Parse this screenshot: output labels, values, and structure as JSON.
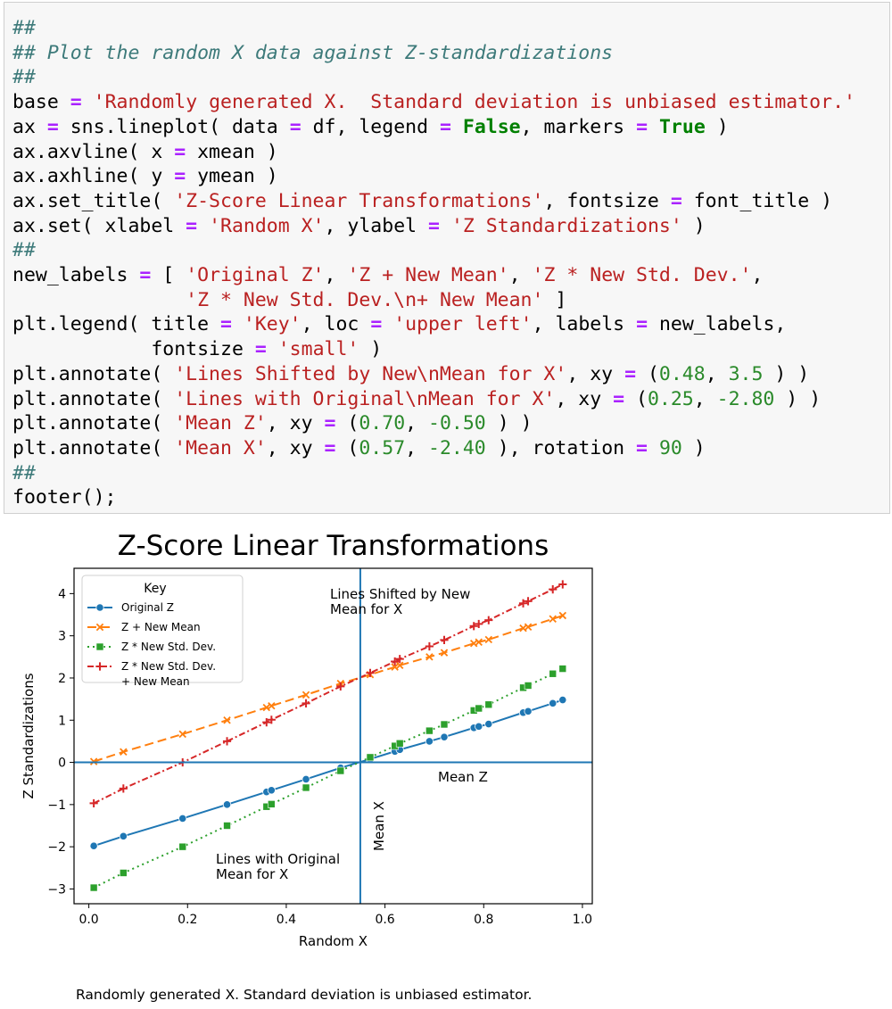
{
  "code_lines": [
    [
      {
        "t": "##",
        "c": "cm"
      }
    ],
    [
      {
        "t": "## Plot the random X data against Z-standardizations",
        "c": "cm"
      }
    ],
    [
      {
        "t": "##",
        "c": "cm"
      }
    ],
    [
      {
        "t": "base "
      },
      {
        "t": "=",
        "c": "op"
      },
      {
        "t": " "
      },
      {
        "t": "'Randomly generated X.  Standard deviation is unbiased estimator.'",
        "c": "st"
      }
    ],
    [
      {
        "t": "ax "
      },
      {
        "t": "=",
        "c": "op"
      },
      {
        "t": " sns.lineplot( data "
      },
      {
        "t": "=",
        "c": "op"
      },
      {
        "t": " df, legend "
      },
      {
        "t": "=",
        "c": "op"
      },
      {
        "t": " "
      },
      {
        "t": "False",
        "c": "kw"
      },
      {
        "t": ", markers "
      },
      {
        "t": "=",
        "c": "op"
      },
      {
        "t": " "
      },
      {
        "t": "True",
        "c": "kw"
      },
      {
        "t": " )"
      }
    ],
    [
      {
        "t": "ax.axvline( x "
      },
      {
        "t": "=",
        "c": "op"
      },
      {
        "t": " xmean )"
      }
    ],
    [
      {
        "t": "ax.axhline( y "
      },
      {
        "t": "=",
        "c": "op"
      },
      {
        "t": " ymean )"
      }
    ],
    [
      {
        "t": "ax.set_title( "
      },
      {
        "t": "'Z-Score Linear Transformations'",
        "c": "st"
      },
      {
        "t": ", fontsize "
      },
      {
        "t": "=",
        "c": "op"
      },
      {
        "t": " font_title )"
      }
    ],
    [
      {
        "t": "ax.set( xlabel "
      },
      {
        "t": "=",
        "c": "op"
      },
      {
        "t": " "
      },
      {
        "t": "'Random X'",
        "c": "st"
      },
      {
        "t": ", ylabel "
      },
      {
        "t": "=",
        "c": "op"
      },
      {
        "t": " "
      },
      {
        "t": "'Z Standardizations'",
        "c": "st"
      },
      {
        "t": " )"
      }
    ],
    [
      {
        "t": "##",
        "c": "cm"
      }
    ],
    [
      {
        "t": "new_labels "
      },
      {
        "t": "=",
        "c": "op"
      },
      {
        "t": " [ "
      },
      {
        "t": "'Original Z'",
        "c": "st"
      },
      {
        "t": ", "
      },
      {
        "t": "'Z + New Mean'",
        "c": "st"
      },
      {
        "t": ", "
      },
      {
        "t": "'Z * New Std. Dev.'",
        "c": "st"
      },
      {
        "t": ","
      }
    ],
    [
      {
        "t": "               "
      },
      {
        "t": "'Z * New Std. Dev.\\n+ New Mean'",
        "c": "st"
      },
      {
        "t": " ]"
      }
    ],
    [
      {
        "t": "plt.legend( title "
      },
      {
        "t": "=",
        "c": "op"
      },
      {
        "t": " "
      },
      {
        "t": "'Key'",
        "c": "st"
      },
      {
        "t": ", loc "
      },
      {
        "t": "=",
        "c": "op"
      },
      {
        "t": " "
      },
      {
        "t": "'upper left'",
        "c": "st"
      },
      {
        "t": ", labels "
      },
      {
        "t": "=",
        "c": "op"
      },
      {
        "t": " new_labels,"
      }
    ],
    [
      {
        "t": "            fontsize "
      },
      {
        "t": "=",
        "c": "op"
      },
      {
        "t": " "
      },
      {
        "t": "'small'",
        "c": "st"
      },
      {
        "t": " )"
      }
    ],
    [
      {
        "t": "plt.annotate( "
      },
      {
        "t": "'Lines Shifted by New\\nMean for X'",
        "c": "st"
      },
      {
        "t": ", xy "
      },
      {
        "t": "=",
        "c": "op"
      },
      {
        "t": " ("
      },
      {
        "t": "0.48",
        "c": "nu"
      },
      {
        "t": ", "
      },
      {
        "t": "3.5",
        "c": "nu"
      },
      {
        "t": " ) )"
      }
    ],
    [
      {
        "t": "plt.annotate( "
      },
      {
        "t": "'Lines with Original\\nMean for X'",
        "c": "st"
      },
      {
        "t": ", xy "
      },
      {
        "t": "=",
        "c": "op"
      },
      {
        "t": " ("
      },
      {
        "t": "0.25",
        "c": "nu"
      },
      {
        "t": ", "
      },
      {
        "t": "-2.80",
        "c": "nu"
      },
      {
        "t": " ) )"
      }
    ],
    [
      {
        "t": "plt.annotate( "
      },
      {
        "t": "'Mean Z'",
        "c": "st"
      },
      {
        "t": ", xy "
      },
      {
        "t": "=",
        "c": "op"
      },
      {
        "t": " ("
      },
      {
        "t": "0.70",
        "c": "nu"
      },
      {
        "t": ", "
      },
      {
        "t": "-0.50",
        "c": "nu"
      },
      {
        "t": " ) )"
      }
    ],
    [
      {
        "t": "plt.annotate( "
      },
      {
        "t": "'Mean X'",
        "c": "st"
      },
      {
        "t": ", xy "
      },
      {
        "t": "=",
        "c": "op"
      },
      {
        "t": " ("
      },
      {
        "t": "0.57",
        "c": "nu"
      },
      {
        "t": ", "
      },
      {
        "t": "-2.40",
        "c": "nu"
      },
      {
        "t": " ), rotation "
      },
      {
        "t": "=",
        "c": "op"
      },
      {
        "t": " "
      },
      {
        "t": "90",
        "c": "nu"
      },
      {
        "t": " )"
      }
    ],
    [
      {
        "t": "##",
        "c": "cm"
      }
    ],
    [
      {
        "t": "footer();"
      }
    ]
  ],
  "chart_data": {
    "type": "line",
    "title": "Z-Score Linear Transformations",
    "xlabel": "Random X",
    "ylabel": "Z Standardizations",
    "xlim": [
      -0.03,
      1.02
    ],
    "ylim": [
      -3.35,
      4.6
    ],
    "xticks": [
      0.0,
      0.2,
      0.4,
      0.6,
      0.8,
      1.0
    ],
    "xtick_labels": [
      "0.0",
      "0.2",
      "0.4",
      "0.6",
      "0.8",
      "1.0"
    ],
    "yticks": [
      -3,
      -2,
      -1,
      0,
      1,
      2,
      3,
      4
    ],
    "ytick_labels": [
      "−3",
      "−2",
      "−1",
      "0",
      "1",
      "2",
      "3",
      "4"
    ],
    "vline_x": 0.55,
    "hline_y": 0,
    "x": [
      0.01,
      0.07,
      0.19,
      0.28,
      0.36,
      0.37,
      0.44,
      0.51,
      0.57,
      0.62,
      0.63,
      0.69,
      0.72,
      0.78,
      0.79,
      0.81,
      0.88,
      0.89,
      0.94,
      0.96
    ],
    "series": [
      {
        "name": "Original Z",
        "color": "#1f77b4",
        "marker": "circle",
        "dash": "",
        "values": [
          -1.98,
          -1.75,
          -1.33,
          -1.0,
          -0.7,
          -0.66,
          -0.4,
          -0.13,
          0.08,
          0.26,
          0.3,
          0.5,
          0.6,
          0.82,
          0.85,
          0.91,
          1.18,
          1.21,
          1.4,
          1.48
        ]
      },
      {
        "name": "Z + New Mean",
        "color": "#ff7f0e",
        "marker": "x",
        "dash": "10,5",
        "values": [
          0.02,
          0.25,
          0.67,
          1.0,
          1.3,
          1.34,
          1.6,
          1.87,
          2.08,
          2.26,
          2.3,
          2.5,
          2.6,
          2.82,
          2.85,
          2.91,
          3.18,
          3.21,
          3.4,
          3.48
        ]
      },
      {
        "name": "Z * New Std. Dev.",
        "color": "#2ca02c",
        "marker": "square",
        "dash": "2,4",
        "values": [
          -2.97,
          -2.62,
          -2.0,
          -1.5,
          -1.05,
          -0.99,
          -0.6,
          -0.2,
          0.12,
          0.39,
          0.45,
          0.75,
          0.9,
          1.23,
          1.28,
          1.37,
          1.77,
          1.82,
          2.1,
          2.22
        ]
      },
      {
        "name": "Z * New Std. Dev.\n+ New Mean",
        "color": "#d62728",
        "marker": "plus",
        "dash": "7,3,2,3",
        "values": [
          -0.97,
          -0.62,
          0.0,
          0.5,
          0.95,
          1.01,
          1.4,
          1.8,
          2.12,
          2.39,
          2.45,
          2.75,
          2.9,
          3.23,
          3.28,
          3.37,
          3.77,
          3.82,
          4.1,
          4.22
        ]
      }
    ],
    "legend": {
      "title": "Key",
      "loc": "upper left",
      "labels": [
        "Original Z",
        "Z + New Mean",
        "Z * New Std. Dev.",
        "Z * New Std. Dev.\n+ New Mean"
      ]
    },
    "annotations": [
      {
        "text": "Lines Shifted by New\nMean for X",
        "x": 0.48,
        "y": 3.5,
        "rotation": 0
      },
      {
        "text": "Lines with Original\nMean for X",
        "x": 0.25,
        "y": -2.8,
        "rotation": 0
      },
      {
        "text": "Mean Z",
        "x": 0.7,
        "y": -0.5,
        "rotation": 0
      },
      {
        "text": "Mean X",
        "x": 0.57,
        "y": -2.4,
        "rotation": 90
      }
    ],
    "grid": false
  },
  "footer": {
    "text": "Randomly generated X.  Standard deviation is unbiased estimator."
  }
}
